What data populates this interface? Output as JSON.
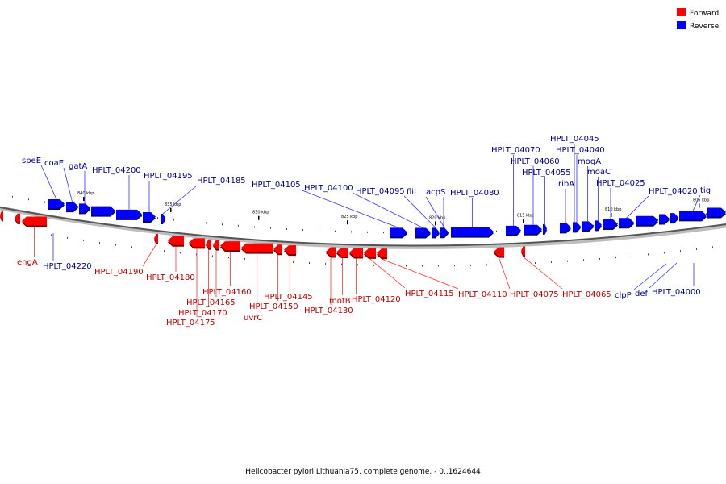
{
  "caption": "Helicobacter pylori Lithuania75, complete genome. - 0..1624644",
  "legend": [
    {
      "label": "Forward",
      "color": "#ff0000"
    },
    {
      "label": "Reverse",
      "color": "#0000ff"
    }
  ],
  "colors": {
    "forward": "#ff0000",
    "forward_dark": "#7a0000",
    "reverse": "#0000ff",
    "reverse_dark": "#00007a",
    "forward_label": "#c00000",
    "reverse_label": "#00008b"
  },
  "scale_labels": [
    "840 kbp",
    "835 kbp",
    "830 kbp",
    "825 kbp",
    "820 kbp",
    "815 kbp",
    "810 kbp",
    "805 kbp"
  ],
  "genes": [
    {
      "name": "speE",
      "strand": "reverse"
    },
    {
      "name": "coaE",
      "strand": "reverse"
    },
    {
      "name": "gatA",
      "strand": "reverse"
    },
    {
      "name": "HPLT_04200",
      "strand": "reverse"
    },
    {
      "name": "HPLT_04195",
      "strand": "reverse"
    },
    {
      "name": "HPLT_04185",
      "strand": "reverse"
    },
    {
      "name": "HPLT_04105",
      "strand": "reverse"
    },
    {
      "name": "HPLT_04100",
      "strand": "reverse"
    },
    {
      "name": "HPLT_04095",
      "strand": "reverse"
    },
    {
      "name": "fliL",
      "strand": "reverse"
    },
    {
      "name": "acpS",
      "strand": "reverse"
    },
    {
      "name": "HPLT_04080",
      "strand": "reverse"
    },
    {
      "name": "HPLT_04070",
      "strand": "reverse"
    },
    {
      "name": "HPLT_04060",
      "strand": "reverse"
    },
    {
      "name": "HPLT_04055",
      "strand": "reverse"
    },
    {
      "name": "HPLT_04045",
      "strand": "reverse"
    },
    {
      "name": "HPLT_04040",
      "strand": "reverse"
    },
    {
      "name": "mogA",
      "strand": "reverse"
    },
    {
      "name": "ribA",
      "strand": "reverse"
    },
    {
      "name": "moaC",
      "strand": "reverse"
    },
    {
      "name": "HPLT_04025",
      "strand": "reverse"
    },
    {
      "name": "HPLT_04020",
      "strand": "reverse"
    },
    {
      "name": "tig",
      "strand": "reverse"
    },
    {
      "name": "HPLT_04220",
      "strand": "reverse"
    },
    {
      "name": "clpP",
      "strand": "reverse"
    },
    {
      "name": "def",
      "strand": "reverse"
    },
    {
      "name": "HPLT_04000",
      "strand": "reverse"
    },
    {
      "name": "engA",
      "strand": "forward"
    },
    {
      "name": "HPLT_04190",
      "strand": "forward"
    },
    {
      "name": "HPLT_04180",
      "strand": "forward"
    },
    {
      "name": "HPLT_04160",
      "strand": "forward"
    },
    {
      "name": "HPLT_04165",
      "strand": "forward"
    },
    {
      "name": "HPLT_04170",
      "strand": "forward"
    },
    {
      "name": "HPLT_04175",
      "strand": "forward"
    },
    {
      "name": "uvrC",
      "strand": "forward"
    },
    {
      "name": "HPLT_04150",
      "strand": "forward"
    },
    {
      "name": "HPLT_04145",
      "strand": "forward"
    },
    {
      "name": "HPLT_04130",
      "strand": "forward"
    },
    {
      "name": "motB",
      "strand": "forward"
    },
    {
      "name": "HPLT_04120",
      "strand": "forward"
    },
    {
      "name": "HPLT_04115",
      "strand": "forward"
    },
    {
      "name": "HPLT_04110",
      "strand": "forward"
    },
    {
      "name": "HPLT_04075",
      "strand": "forward"
    },
    {
      "name": "HPLT_04065",
      "strand": "forward"
    }
  ]
}
